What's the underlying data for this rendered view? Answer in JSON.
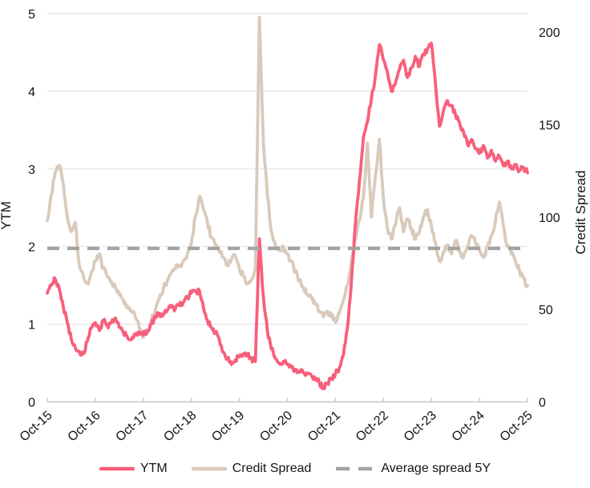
{
  "chart_data": {
    "type": "line",
    "title": "",
    "x_tick_labels": [
      "Oct-15",
      "Oct-16",
      "Oct-17",
      "Oct-18",
      "Oct-19",
      "Oct-20",
      "Oct-21",
      "Oct-22",
      "Oct-23",
      "Oct-24",
      "Oct-25"
    ],
    "x_unit": "months since Oct-2015 (0..120)",
    "grid": "horizontal",
    "legend_position": "bottom",
    "left_axis": {
      "label": "YTM",
      "range": [
        0,
        5
      ],
      "ticks": [
        0,
        1,
        2,
        3,
        4,
        5
      ]
    },
    "right_axis": {
      "label": "Credit Spread",
      "range": [
        0,
        210
      ],
      "ticks": [
        0,
        50,
        100,
        150,
        200
      ]
    },
    "series": [
      {
        "name": "YTM",
        "axis": "left",
        "style": "solid",
        "color": "#f85f7b",
        "monthly_values": [
          1.4,
          1.5,
          1.58,
          1.45,
          1.22,
          1.02,
          0.8,
          0.7,
          0.65,
          0.62,
          0.78,
          0.95,
          1.02,
          0.92,
          1.05,
          0.98,
          1.02,
          1.08,
          0.96,
          0.9,
          0.84,
          0.8,
          0.86,
          0.9,
          0.86,
          0.92,
          1.0,
          1.08,
          1.14,
          1.12,
          1.18,
          1.22,
          1.2,
          1.24,
          1.28,
          1.34,
          1.4,
          1.42,
          1.43,
          1.22,
          1.05,
          0.96,
          0.9,
          0.8,
          0.64,
          0.55,
          0.48,
          0.54,
          0.58,
          0.62,
          0.6,
          0.56,
          0.52,
          2.1,
          1.35,
          0.92,
          0.68,
          0.56,
          0.5,
          0.52,
          0.48,
          0.45,
          0.42,
          0.4,
          0.38,
          0.36,
          0.34,
          0.3,
          0.24,
          0.2,
          0.24,
          0.3,
          0.36,
          0.44,
          0.6,
          0.95,
          1.55,
          2.3,
          2.85,
          3.4,
          3.6,
          3.9,
          4.2,
          4.6,
          4.4,
          4.25,
          4.0,
          4.1,
          4.28,
          4.4,
          4.18,
          4.3,
          4.45,
          4.32,
          4.48,
          4.55,
          4.62,
          4.1,
          3.55,
          3.75,
          3.88,
          3.82,
          3.7,
          3.6,
          3.48,
          3.32,
          3.38,
          3.26,
          3.2,
          3.3,
          3.14,
          3.24,
          3.1,
          3.16,
          3.04,
          3.1,
          3.0,
          3.06,
          2.98,
          3.02,
          2.95
        ]
      },
      {
        "name": "Credit Spread",
        "axis": "right",
        "style": "solid",
        "color": "#d9cabb",
        "monthly_values": [
          98,
          112,
          124,
          128,
          118,
          100,
          92,
          97,
          74,
          68,
          64,
          70,
          76,
          80,
          72,
          68,
          65,
          62,
          58,
          55,
          52,
          49,
          46,
          40,
          35,
          38,
          44,
          50,
          56,
          61,
          66,
          70,
          72,
          74,
          76,
          80,
          86,
          100,
          111,
          104,
          97,
          89,
          85,
          81,
          78,
          74,
          77,
          79,
          72,
          68,
          64,
          66,
          72,
          208,
          140,
          112,
          92,
          85,
          82,
          84,
          80,
          76,
          70,
          66,
          62,
          58,
          56,
          53,
          49,
          46,
          49,
          46,
          43,
          48,
          55,
          63,
          76,
          88,
          98,
          110,
          140,
          100,
          122,
          142,
          110,
          94,
          88,
          96,
          105,
          92,
          99,
          94,
          88,
          92,
          100,
          104,
          95,
          86,
          76,
          81,
          85,
          80,
          87,
          82,
          78,
          84,
          90,
          86,
          82,
          78,
          84,
          90,
          98,
          108,
          95,
          84,
          80,
          76,
          71,
          67,
          63
        ]
      },
      {
        "name": "Average spread 5Y",
        "axis": "right",
        "style": "dashed",
        "color": "#a3a3a3",
        "constant_value": 83
      }
    ]
  },
  "legend": {
    "items": [
      {
        "label": "YTM",
        "color": "#f85f7b",
        "style": "solid"
      },
      {
        "label": "Credit Spread",
        "color": "#d9cabb",
        "style": "solid"
      },
      {
        "label": "Average spread 5Y",
        "color": "#a3a3a3",
        "style": "dashed"
      }
    ]
  },
  "colors": {
    "grid": "#e4e4e4",
    "axis_line": "#c9c9c9",
    "tick_text": "#141414",
    "background": "#ffffff"
  }
}
